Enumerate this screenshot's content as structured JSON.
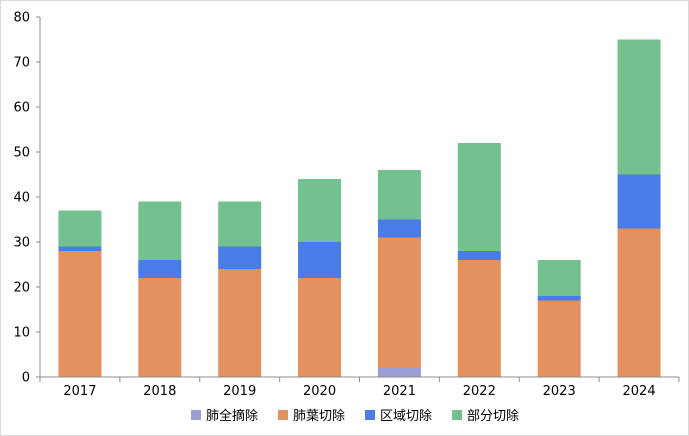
{
  "chart_data": {
    "type": "bar",
    "stacked": true,
    "categories": [
      "2017",
      "2018",
      "2019",
      "2020",
      "2021",
      "2022",
      "2023",
      "2024"
    ],
    "series": [
      {
        "name": "肺全摘除",
        "color": "#9b9fd8",
        "values": [
          0,
          0,
          0,
          0,
          2,
          0,
          0,
          0
        ]
      },
      {
        "name": "肺葉切除",
        "color": "#e3915e",
        "values": [
          28,
          22,
          24,
          22,
          29,
          26,
          17,
          33
        ]
      },
      {
        "name": "区域切除",
        "color": "#4a7be6",
        "values": [
          1,
          4,
          5,
          8,
          4,
          2,
          1,
          12
        ]
      },
      {
        "name": "部分切除",
        "color": "#72c18f",
        "values": [
          8,
          13,
          10,
          14,
          11,
          24,
          8,
          30
        ]
      }
    ],
    "ylim": [
      0,
      80
    ],
    "yticks": [
      "0",
      "10",
      "20",
      "30",
      "40",
      "50",
      "60",
      "70",
      "80"
    ],
    "legend_position": "bottom",
    "grid": false
  }
}
